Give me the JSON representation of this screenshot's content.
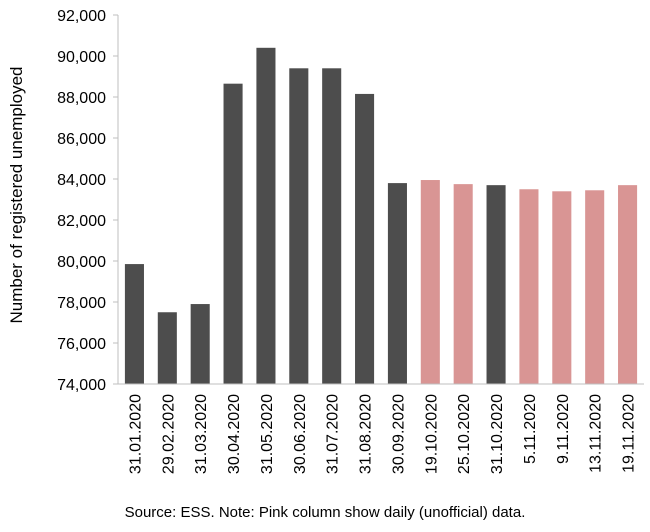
{
  "chart_data": {
    "type": "bar",
    "ylabel": "Number of registered unemployed",
    "xlabel": "",
    "ylim": [
      74000,
      92000
    ],
    "yticks": [
      74000,
      76000,
      78000,
      80000,
      82000,
      84000,
      86000,
      88000,
      90000,
      92000
    ],
    "ytick_labels": [
      "74,000",
      "76,000",
      "78,000",
      "80,000",
      "82,000",
      "84,000",
      "86,000",
      "88,000",
      "90,000",
      "92,000"
    ],
    "grid": false,
    "categories": [
      "31.01.2020",
      "29.02.2020",
      "31.03.2020",
      "30.04.2020",
      "31.05.2020",
      "30.06.2020",
      "31.07.2020",
      "31.08.2020",
      "30.09.2020",
      "19.10.2020",
      "25.10.2020",
      "31.10.2020",
      "5.11.2020",
      "9.11.2020",
      "13.11.2020",
      "19.11.2020"
    ],
    "values": [
      79850,
      77500,
      77900,
      88650,
      90400,
      89400,
      89400,
      88150,
      83800,
      83950,
      83750,
      83700,
      83500,
      83400,
      83450,
      83700
    ],
    "bar_kinds": [
      "official",
      "official",
      "official",
      "official",
      "official",
      "official",
      "official",
      "official",
      "official",
      "daily",
      "daily",
      "official",
      "daily",
      "daily",
      "daily",
      "daily"
    ],
    "colors": {
      "official": "#4d4d4d",
      "daily": "#d99594",
      "axis": "#bfbfbf"
    }
  },
  "source_note": "Source: ESS. Note: Pink column show daily (unofficial) data."
}
